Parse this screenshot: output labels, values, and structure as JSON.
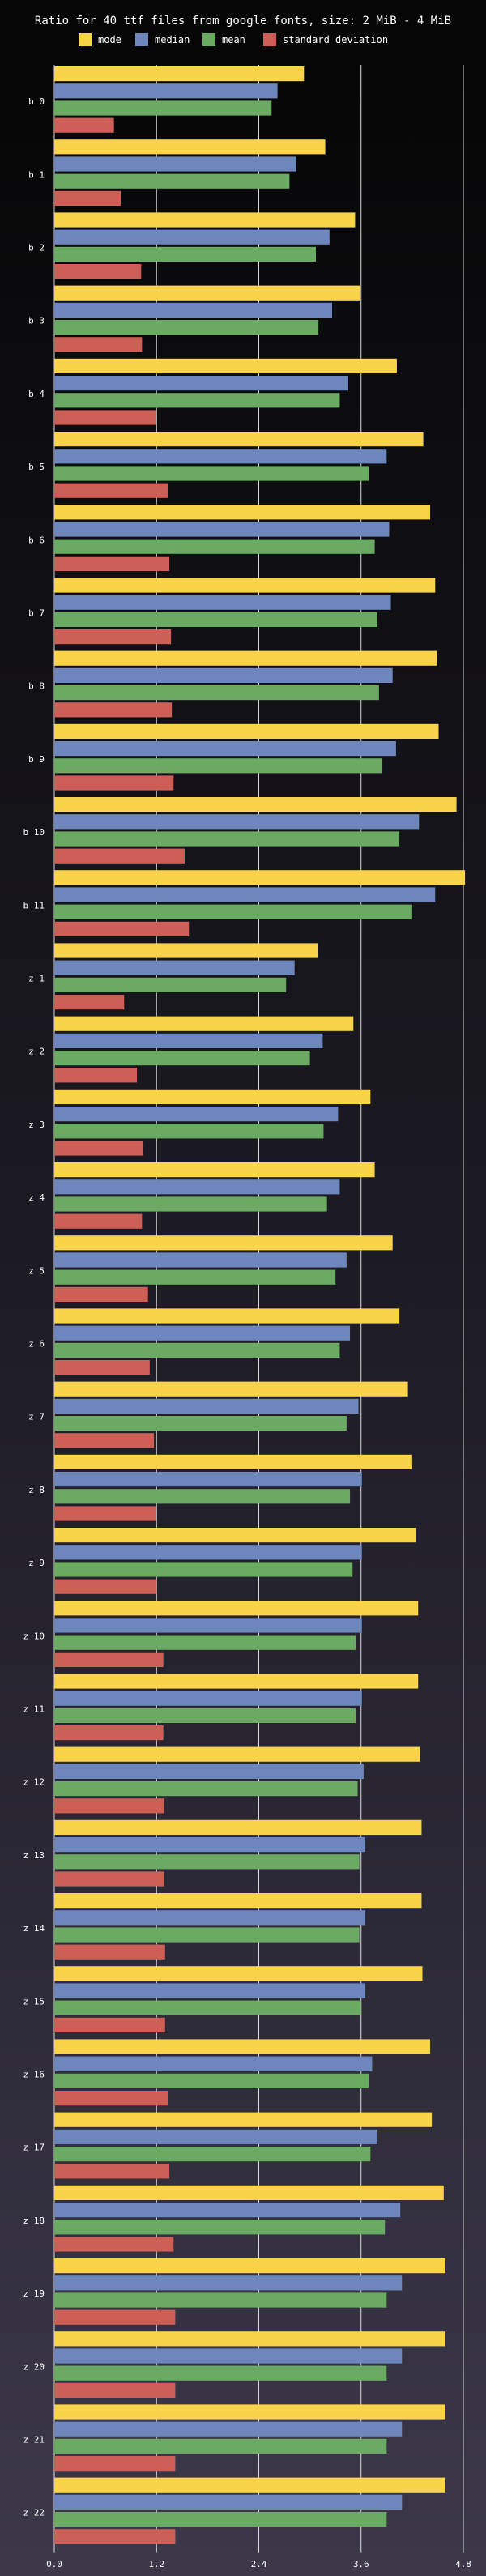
{
  "chart_data": {
    "type": "bar",
    "orientation": "horizontal",
    "title": "Ratio for 40 ttf files from google fonts, size: 2 MiB - 4 MiB",
    "xlabel": "",
    "ylabel": "",
    "xlim": [
      0,
      4.8
    ],
    "x_ticks": [
      "0.0",
      "1.2",
      "2.4",
      "3.6",
      "4.8"
    ],
    "grid": true,
    "legend_position": "top",
    "categories": [
      "b 0",
      "b 1",
      "b 2",
      "b 3",
      "b 4",
      "b 5",
      "b 6",
      "b 7",
      "b 8",
      "b 9",
      "b 10",
      "b 11",
      "z 1",
      "z 2",
      "z 3",
      "z 4",
      "z 5",
      "z 6",
      "z 7",
      "z 8",
      "z 9",
      "z 10",
      "z 11",
      "z 12",
      "z 13",
      "z 14",
      "z 15",
      "z 16",
      "z 17",
      "z 18",
      "z 19",
      "z 20",
      "z 21",
      "z 22"
    ],
    "series": [
      {
        "name": "mode",
        "color": "#f9d34a",
        "values": [
          2.93,
          3.18,
          3.53,
          3.59,
          4.02,
          4.33,
          4.41,
          4.47,
          4.49,
          4.51,
          4.72,
          4.82,
          3.09,
          3.51,
          3.71,
          3.76,
          3.97,
          4.05,
          4.15,
          4.2,
          4.24,
          4.27,
          4.27,
          4.29,
          4.31,
          4.31,
          4.32,
          4.41,
          4.43,
          4.57,
          4.59,
          4.59,
          4.59,
          4.59
        ]
      },
      {
        "name": "median",
        "color": "#6d86bb",
        "values": [
          2.62,
          2.84,
          3.23,
          3.26,
          3.45,
          3.9,
          3.93,
          3.95,
          3.97,
          4.01,
          4.28,
          4.47,
          2.82,
          3.15,
          3.33,
          3.35,
          3.43,
          3.47,
          3.57,
          3.61,
          3.61,
          3.61,
          3.61,
          3.63,
          3.65,
          3.65,
          3.65,
          3.73,
          3.79,
          4.06,
          4.08,
          4.08,
          4.08,
          4.08
        ]
      },
      {
        "name": "mean",
        "color": "#6aaa62",
        "values": [
          2.55,
          2.76,
          3.07,
          3.1,
          3.35,
          3.69,
          3.76,
          3.79,
          3.81,
          3.85,
          4.05,
          4.2,
          2.72,
          3.0,
          3.16,
          3.2,
          3.3,
          3.35,
          3.43,
          3.47,
          3.5,
          3.54,
          3.54,
          3.56,
          3.58,
          3.58,
          3.6,
          3.69,
          3.71,
          3.88,
          3.9,
          3.9,
          3.9,
          3.9
        ]
      },
      {
        "name": "standard deviation",
        "color": "#cd5f56",
        "values": [
          0.7,
          0.78,
          1.02,
          1.03,
          1.19,
          1.34,
          1.35,
          1.37,
          1.38,
          1.4,
          1.53,
          1.58,
          0.82,
          0.97,
          1.04,
          1.03,
          1.1,
          1.12,
          1.17,
          1.19,
          1.2,
          1.28,
          1.28,
          1.29,
          1.29,
          1.3,
          1.3,
          1.34,
          1.35,
          1.4,
          1.42,
          1.42,
          1.42,
          1.42
        ]
      }
    ]
  }
}
